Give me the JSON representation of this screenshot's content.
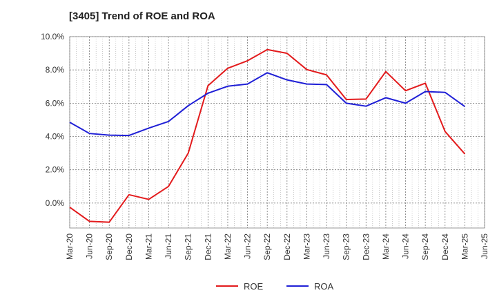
{
  "chart_data": {
    "type": "line",
    "title": "[3405]  Trend of ROE and ROA",
    "xlabel": "",
    "ylabel": "",
    "x": [
      "Mar-20",
      "Jun-20",
      "Sep-20",
      "Dec-20",
      "Mar-21",
      "Jun-21",
      "Sep-21",
      "Dec-21",
      "Mar-22",
      "Jun-22",
      "Sep-22",
      "Dec-22",
      "Mar-23",
      "Jun-23",
      "Sep-23",
      "Dec-23",
      "Mar-24",
      "Jun-24",
      "Sep-24",
      "Dec-24",
      "Mar-25",
      "Jun-25"
    ],
    "ylim": [
      -1.5,
      10.0
    ],
    "yticks": [
      0.0,
      2.0,
      4.0,
      6.0,
      8.0,
      10.0
    ],
    "ytick_labels": [
      "0.0%",
      "2.0%",
      "4.0%",
      "6.0%",
      "8.0%",
      "10.0%"
    ],
    "grid": true,
    "legend_position": "bottom-center",
    "series": [
      {
        "name": "ROE",
        "color": "#e31a1c",
        "values": [
          -0.25,
          -1.1,
          -1.15,
          0.5,
          0.22,
          1.0,
          3.0,
          7.05,
          8.1,
          8.55,
          9.22,
          9.0,
          8.02,
          7.7,
          6.22,
          6.25,
          7.9,
          6.75,
          7.2,
          4.3,
          2.95,
          null
        ]
      },
      {
        "name": "ROA",
        "color": "#1f1fd6",
        "values": [
          4.85,
          4.18,
          4.08,
          4.06,
          4.5,
          4.9,
          5.85,
          6.6,
          7.02,
          7.15,
          7.83,
          7.4,
          7.15,
          7.12,
          6.0,
          5.82,
          6.33,
          6.0,
          6.7,
          6.65,
          5.8,
          null
        ]
      }
    ]
  }
}
